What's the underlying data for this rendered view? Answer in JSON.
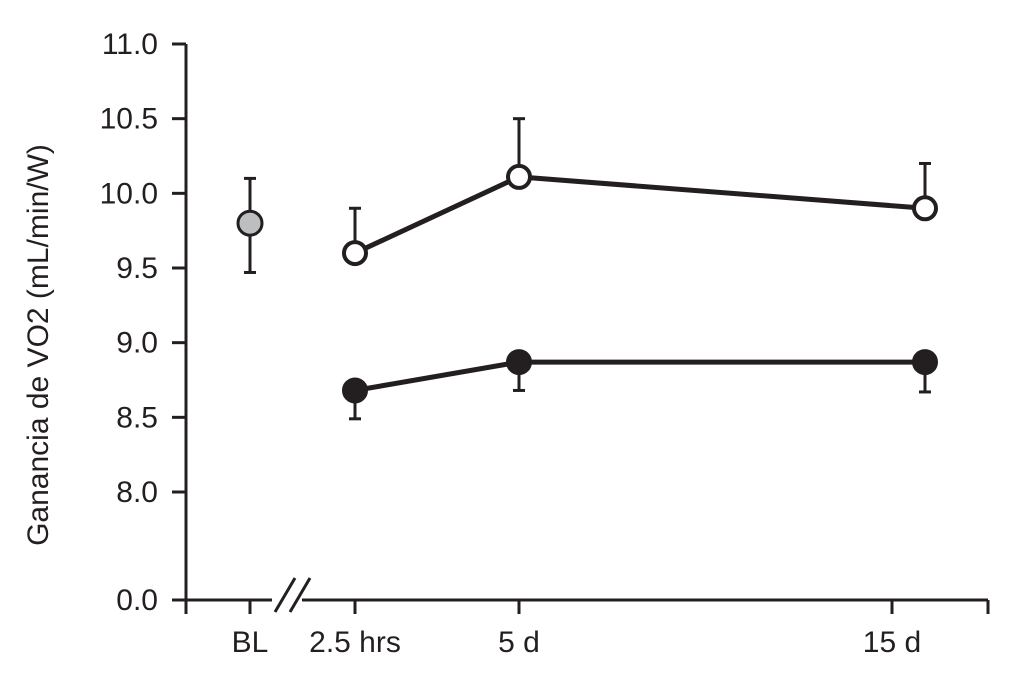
{
  "chart_data": {
    "type": "line",
    "xlabel": "",
    "ylabel": "Ganancia de VO2 (mL/min/W)",
    "ylim": [
      0.0,
      11.0
    ],
    "y_axis_break": "8.0 to 0.0",
    "x_axis_break": "between BL and 2.5 hrs",
    "grid": false,
    "y_ticks": [
      "0.0",
      "8.0",
      "8.5",
      "9.0",
      "9.5",
      "10.0",
      "10.5",
      "11.0"
    ],
    "y_tick_values": [
      0.0,
      8.0,
      8.5,
      9.0,
      9.5,
      10.0,
      10.5,
      11.0
    ],
    "categories": [
      "BL",
      "2.5 hrs",
      "5 d",
      "15 d"
    ],
    "baseline": {
      "category": "BL",
      "value": 9.8,
      "error_upper": 10.1,
      "error_lower": 9.47,
      "color": "#bcbec0"
    },
    "series": [
      {
        "marker": "open-circle",
        "fill": "#ffffff",
        "points": [
          {
            "category": "2.5 hrs",
            "value": 9.6,
            "error_upper": 9.9
          },
          {
            "category": "5 d",
            "value": 10.11,
            "error_upper": 10.5
          },
          {
            "category": "15 d",
            "value": 9.9,
            "error_upper": 10.2
          }
        ]
      },
      {
        "marker": "filled-circle",
        "fill": "#231f20",
        "points": [
          {
            "category": "2.5 hrs",
            "value": 8.68,
            "error_lower": 8.49
          },
          {
            "category": "5 d",
            "value": 8.87,
            "error_lower": 8.68
          },
          {
            "category": "15 d",
            "value": 8.87,
            "error_lower": 8.67
          }
        ]
      }
    ],
    "ink_color": "#231f20"
  }
}
